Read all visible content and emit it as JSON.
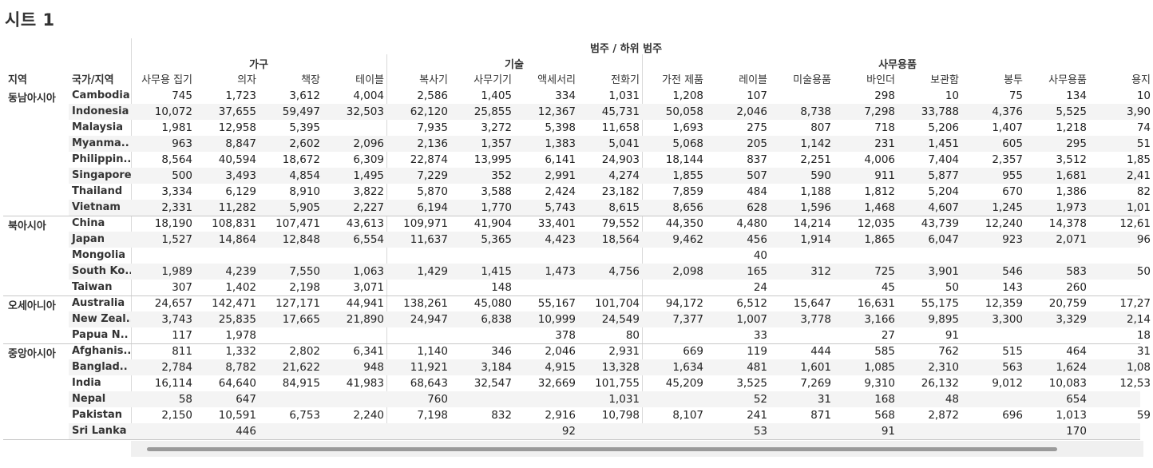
{
  "sheet_title": "시트 1",
  "header": {
    "top_label": "범주  /  하위 범주",
    "region_col": "지역",
    "country_col": "국가/지역"
  },
  "categories": [
    {
      "name": "가구",
      "subs": [
        "사무용 집기",
        "의자",
        "책장",
        "테이블"
      ]
    },
    {
      "name": "기술",
      "subs": [
        "복사기",
        "사무기기",
        "액세서리",
        "전화기"
      ]
    },
    {
      "name": "사무용품",
      "subs": [
        "가전 제품",
        "레이블",
        "미술용품",
        "바인더",
        "보관함",
        "봉투",
        "사무용품",
        "용지"
      ]
    }
  ],
  "regions": [
    {
      "name": "동남아시아",
      "rows": [
        {
          "country": "Cambodia",
          "values": [
            "745",
            "1,723",
            "3,612",
            "4,004",
            "2,586",
            "1,405",
            "334",
            "1,031",
            "1,208",
            "107",
            "",
            "298",
            "10",
            "75",
            "134",
            "10"
          ]
        },
        {
          "country": "Indonesia",
          "values": [
            "10,072",
            "37,655",
            "59,497",
            "32,503",
            "62,120",
            "25,855",
            "12,367",
            "45,731",
            "50,058",
            "2,046",
            "8,738",
            "7,298",
            "33,788",
            "4,376",
            "5,525",
            "3,90"
          ]
        },
        {
          "country": "Malaysia",
          "values": [
            "1,981",
            "12,958",
            "5,395",
            "",
            "7,935",
            "3,272",
            "5,398",
            "11,658",
            "1,693",
            "275",
            "807",
            "718",
            "5,206",
            "1,407",
            "1,218",
            "74"
          ]
        },
        {
          "country": "Myanma..",
          "values": [
            "963",
            "8,847",
            "2,602",
            "2,096",
            "2,136",
            "1,357",
            "1,383",
            "5,041",
            "5,068",
            "205",
            "1,142",
            "231",
            "1,451",
            "605",
            "295",
            "51"
          ]
        },
        {
          "country": "Philippin..",
          "values": [
            "8,564",
            "40,594",
            "18,672",
            "6,309",
            "22,874",
            "13,995",
            "6,141",
            "24,903",
            "18,144",
            "837",
            "2,251",
            "4,006",
            "7,404",
            "2,357",
            "3,512",
            "1,85"
          ]
        },
        {
          "country": "Singapore",
          "values": [
            "500",
            "3,493",
            "4,854",
            "1,495",
            "7,229",
            "352",
            "2,991",
            "4,274",
            "1,855",
            "507",
            "590",
            "911",
            "5,877",
            "955",
            "1,681",
            "2,41"
          ]
        },
        {
          "country": "Thailand",
          "values": [
            "3,334",
            "6,129",
            "8,910",
            "3,822",
            "5,870",
            "3,588",
            "2,424",
            "23,182",
            "7,859",
            "484",
            "1,188",
            "1,812",
            "5,204",
            "670",
            "1,386",
            "82"
          ]
        },
        {
          "country": "Vietnam",
          "values": [
            "2,331",
            "11,282",
            "5,905",
            "2,227",
            "6,194",
            "1,770",
            "5,743",
            "8,615",
            "8,656",
            "628",
            "1,596",
            "1,468",
            "4,607",
            "1,245",
            "1,973",
            "1,01"
          ]
        }
      ]
    },
    {
      "name": "북아시아",
      "rows": [
        {
          "country": "China",
          "values": [
            "18,190",
            "108,831",
            "107,471",
            "43,613",
            "109,971",
            "41,904",
            "33,401",
            "79,552",
            "44,350",
            "4,480",
            "14,214",
            "12,035",
            "43,739",
            "12,240",
            "14,378",
            "12,61"
          ]
        },
        {
          "country": "Japan",
          "values": [
            "1,527",
            "14,864",
            "12,848",
            "6,554",
            "11,637",
            "5,365",
            "4,423",
            "18,564",
            "9,462",
            "456",
            "1,914",
            "1,865",
            "6,047",
            "923",
            "2,071",
            "96"
          ]
        },
        {
          "country": "Mongolia",
          "values": [
            "",
            "",
            "",
            "",
            "",
            "",
            "",
            "",
            "",
            "40",
            "",
            "",
            "",
            "",
            "",
            ""
          ]
        },
        {
          "country": "South Ko..",
          "values": [
            "1,989",
            "4,239",
            "7,550",
            "1,063",
            "1,429",
            "1,415",
            "1,473",
            "4,756",
            "2,098",
            "165",
            "312",
            "725",
            "3,901",
            "546",
            "583",
            "50"
          ]
        },
        {
          "country": "Taiwan",
          "values": [
            "307",
            "1,402",
            "2,198",
            "3,071",
            "",
            "148",
            "",
            "",
            "",
            "24",
            "",
            "45",
            "50",
            "143",
            "260",
            ""
          ]
        }
      ]
    },
    {
      "name": "오세아니아",
      "rows": [
        {
          "country": "Australia",
          "values": [
            "24,657",
            "142,471",
            "127,171",
            "44,941",
            "138,261",
            "45,080",
            "55,167",
            "101,704",
            "94,172",
            "6,512",
            "15,647",
            "16,631",
            "55,175",
            "12,359",
            "20,759",
            "17,27"
          ]
        },
        {
          "country": "New Zeal..",
          "values": [
            "3,743",
            "25,835",
            "17,665",
            "21,890",
            "24,947",
            "6,838",
            "10,999",
            "24,549",
            "7,377",
            "1,007",
            "3,778",
            "3,166",
            "9,895",
            "3,300",
            "3,329",
            "2,14"
          ]
        },
        {
          "country": "Papua N..",
          "values": [
            "117",
            "1,978",
            "",
            "",
            "",
            "",
            "378",
            "80",
            "",
            "33",
            "",
            "27",
            "91",
            "",
            "",
            "18"
          ]
        }
      ]
    },
    {
      "name": "중앙아시아",
      "rows": [
        {
          "country": "Afghanis..",
          "values": [
            "811",
            "1,332",
            "2,802",
            "6,341",
            "1,140",
            "346",
            "2,046",
            "2,931",
            "669",
            "119",
            "444",
            "585",
            "762",
            "515",
            "464",
            "31"
          ]
        },
        {
          "country": "Banglad..",
          "values": [
            "2,784",
            "8,782",
            "21,622",
            "948",
            "11,921",
            "3,184",
            "4,915",
            "13,328",
            "1,634",
            "481",
            "1,601",
            "1,085",
            "2,310",
            "563",
            "1,624",
            "1,08"
          ]
        },
        {
          "country": "India",
          "values": [
            "16,114",
            "64,640",
            "84,915",
            "41,983",
            "68,643",
            "32,547",
            "32,669",
            "101,755",
            "45,209",
            "3,525",
            "7,269",
            "9,310",
            "26,132",
            "9,012",
            "10,083",
            "12,53"
          ]
        },
        {
          "country": "Nepal",
          "values": [
            "58",
            "647",
            "",
            "",
            "760",
            "",
            "",
            "1,031",
            "",
            "52",
            "31",
            "168",
            "48",
            "",
            "654",
            ""
          ]
        },
        {
          "country": "Pakistan",
          "values": [
            "2,150",
            "10,591",
            "6,753",
            "2,240",
            "7,198",
            "832",
            "2,916",
            "10,798",
            "8,107",
            "241",
            "871",
            "568",
            "2,872",
            "696",
            "1,013",
            "59"
          ]
        },
        {
          "country": "Sri Lanka",
          "values": [
            "",
            "446",
            "",
            "",
            "",
            "",
            "92",
            "",
            "",
            "53",
            "",
            "91",
            "",
            "",
            "170",
            ""
          ]
        }
      ]
    }
  ]
}
